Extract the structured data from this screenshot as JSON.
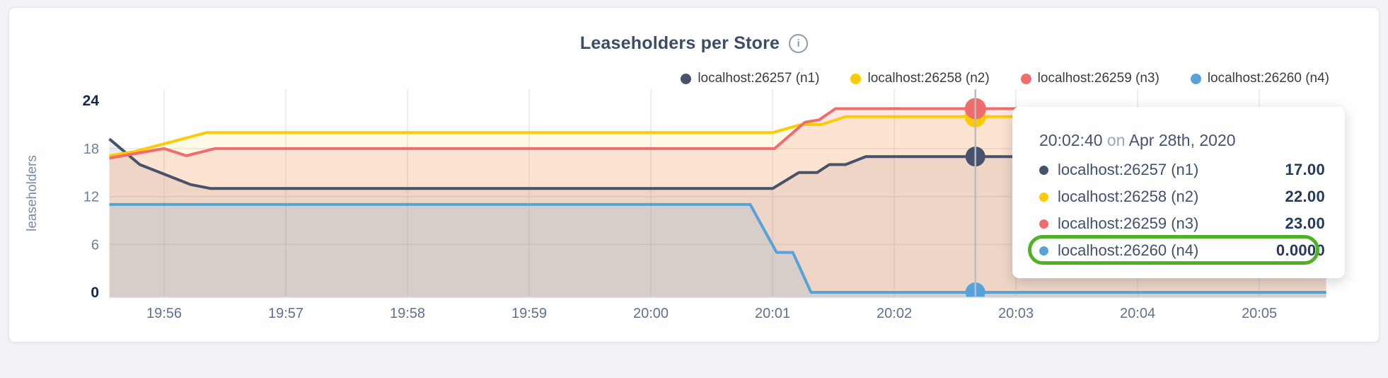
{
  "header": {
    "title": "Leaseholders per Store",
    "info_icon": "i"
  },
  "legend": {
    "items": [
      {
        "label": "localhost:26257 (n1)",
        "color": "#47536b"
      },
      {
        "label": "localhost:26258 (n2)",
        "color": "#fdca04"
      },
      {
        "label": "localhost:26259 (n3)",
        "color": "#f16d6d"
      },
      {
        "label": "localhost:26260 (n4)",
        "color": "#55a3da"
      }
    ]
  },
  "chart_data": {
    "type": "area",
    "title": "Leaseholders per Store",
    "ylabel": "leaseholders",
    "ylim": [
      0,
      24
    ],
    "yticks": [
      0,
      6,
      12,
      18,
      24
    ],
    "bold_yticks": [
      0,
      24
    ],
    "grid": true,
    "legend_position": "top-right",
    "x_domain": [
      0,
      600
    ],
    "xticks": [
      {
        "t": 27,
        "label": "19:56"
      },
      {
        "t": 87,
        "label": "19:57"
      },
      {
        "t": 147,
        "label": "19:58"
      },
      {
        "t": 207,
        "label": "19:59"
      },
      {
        "t": 267,
        "label": "20:00"
      },
      {
        "t": 327,
        "label": "20:01"
      },
      {
        "t": 387,
        "label": "20:02"
      },
      {
        "t": 447,
        "label": "20:03"
      },
      {
        "t": 507,
        "label": "20:04"
      },
      {
        "t": 567,
        "label": "20:05"
      }
    ],
    "series": [
      {
        "name": "localhost:26257 (n1)",
        "color": "#47536b",
        "fill_opacity": 0.1,
        "dot_radius": 14,
        "points": [
          [
            0,
            19.2
          ],
          [
            15,
            16
          ],
          [
            25,
            15
          ],
          [
            40,
            13.5
          ],
          [
            50,
            13
          ],
          [
            327,
            13
          ],
          [
            340,
            15
          ],
          [
            349,
            15
          ],
          [
            355,
            16
          ],
          [
            363,
            16
          ],
          [
            373,
            17
          ],
          [
            600,
            17
          ]
        ]
      },
      {
        "name": "localhost:26258 (n2)",
        "color": "#fdca04",
        "fill_opacity": 0.1,
        "dot_radius": 15,
        "points": [
          [
            0,
            17.1
          ],
          [
            12,
            17.6
          ],
          [
            48,
            20
          ],
          [
            327,
            20
          ],
          [
            341,
            21
          ],
          [
            351,
            21
          ],
          [
            363,
            22
          ],
          [
            600,
            22
          ]
        ]
      },
      {
        "name": "localhost:26259 (n3)",
        "color": "#f16d6d",
        "fill_opacity": 0.16,
        "dot_radius": 15,
        "points": [
          [
            0,
            16.8
          ],
          [
            27,
            18
          ],
          [
            38,
            17.1
          ],
          [
            52,
            18
          ],
          [
            328,
            18
          ],
          [
            343,
            21.3
          ],
          [
            350,
            21.6
          ],
          [
            358,
            23
          ],
          [
            600,
            23
          ]
        ]
      },
      {
        "name": "localhost:26260 (n4)",
        "color": "#55a3da",
        "fill_opacity": 0.14,
        "dot_radius": 14,
        "points": [
          [
            0,
            11
          ],
          [
            316,
            11
          ],
          [
            329,
            5
          ],
          [
            337,
            5
          ],
          [
            346,
            0
          ],
          [
            600,
            0
          ]
        ]
      }
    ],
    "hover": {
      "t": 427,
      "time_label": "20:02:40",
      "values": [
        17,
        22,
        23,
        0
      ]
    }
  },
  "tooltip": {
    "time": "20:02:40",
    "conjunction": "on",
    "date": "Apr 28th, 2020",
    "rows": [
      {
        "label": "localhost:26257 (n1)",
        "value": "17.00",
        "color": "#47536b"
      },
      {
        "label": "localhost:26258 (n2)",
        "value": "22.00",
        "color": "#fdca04"
      },
      {
        "label": "localhost:26259 (n3)",
        "value": "23.00",
        "color": "#f16d6d"
      },
      {
        "label": "localhost:26260 (n4)",
        "value": "0.0000",
        "color": "#55a3da"
      }
    ],
    "highlight": {
      "row_index": 3,
      "color": "#4fb226"
    }
  }
}
